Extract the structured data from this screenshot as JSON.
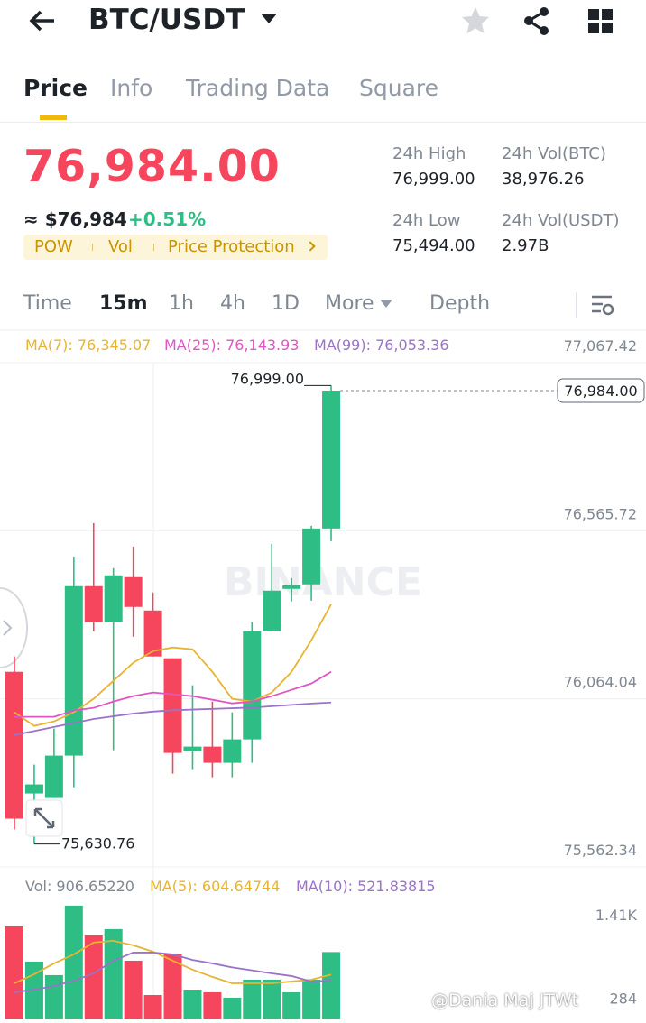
{
  "header": {
    "pair": "BTC/USDT"
  },
  "tabs": [
    "Price",
    "Info",
    "Trading Data",
    "Square"
  ],
  "ticker": {
    "price": "76,984.00",
    "usd": "≈ $76,984",
    "change": "+0.51%",
    "tags": [
      "POW",
      "Vol",
      "Price Protection"
    ]
  },
  "stats": [
    {
      "label": "24h High",
      "value": "76,999.00"
    },
    {
      "label": "24h Vol(BTC)",
      "value": "38,976.26"
    },
    {
      "label": "24h Low",
      "value": "75,494.00"
    },
    {
      "label": "24h Vol(USDT)",
      "value": "2.97B"
    }
  ],
  "intervals": [
    "Time",
    "15m",
    "1h",
    "4h",
    "1D",
    "More",
    "Depth"
  ],
  "watermark": "BINANCE",
  "credit": "@Dania Maj JTWt",
  "chart_data": [
    {
      "type": "candlestick",
      "up_color": "#2ebd85",
      "down_color": "#f6465d",
      "open": [
        76144.7,
        75781.6,
        75768.1,
        75894.6,
        76400.3,
        76292.7,
        76427.2,
        76327.6,
        76185.1,
        75908.0,
        75921.5,
        75873.0,
        75943.0,
        76265.8,
        76392.2,
        76405.7,
        76572.4
      ],
      "high": [
        76190.5,
        75867.7,
        75975.3,
        76489.0,
        76588.6,
        76454.1,
        76518.6,
        76381.4,
        76185.1,
        76104.4,
        76056.0,
        76023.7,
        76292.7,
        76526.7,
        76424.5,
        76580.5,
        76999.0
      ],
      "low": [
        75674.0,
        75630.76,
        75768.1,
        75800.4,
        76265.8,
        75910.7,
        76249.6,
        76190.5,
        75840.8,
        75854.2,
        75830.0,
        75830.0,
        75873.0,
        76265.8,
        76354.5,
        76357.2,
        76534.8
      ],
      "close": [
        75706.3,
        75808.5,
        75894.6,
        76400.3,
        76292.7,
        76432.6,
        76338.4,
        76190.5,
        75902.6,
        75921.5,
        75873.0,
        75943.0,
        76265.8,
        76386.8,
        76403.0,
        76572.4,
        76984.0
      ],
      "series": [
        {
          "name": "MA(7): 76,345.07",
          "color": "#e8b430",
          "values": [
            76023.7,
            75983.3,
            75996.8,
            76023.7,
            76064.0,
            76117.8,
            76171.6,
            76206.6,
            76217.4,
            76212.0,
            76144.7,
            76064.0,
            76056.0,
            76082.9,
            76144.7,
            76238.9,
            76346.5
          ]
        },
        {
          "name": "MA(25): 76,143.93",
          "color": "#e055c6",
          "values": [
            76010.2,
            76010.2,
            76010.2,
            76029.1,
            76037.1,
            76056.0,
            76072.1,
            76082.9,
            76077.5,
            76072.1,
            76061.3,
            76050.6,
            76056.0,
            76072.1,
            76090.9,
            76109.8,
            76144.7
          ]
        },
        {
          "name": "MA(99): 76,053.36",
          "color": "#9b72c9",
          "values": [
            75956,
            75968,
            75980,
            75992,
            76004,
            76012,
            76020,
            76026,
            76030,
            76032,
            76034,
            76036,
            76038,
            76042,
            76046,
            76050,
            76053
          ]
        }
      ],
      "ylim": [
        75562.34,
        77067.42
      ],
      "yticks": [
        {
          "value": 77067.42,
          "label": "77,067.42"
        },
        {
          "value": 76565.72,
          "label": "76,565.72"
        },
        {
          "value": 76064.04,
          "label": "76,064.04"
        },
        {
          "value": 75562.34,
          "label": "75,562.34"
        }
      ],
      "grid": true,
      "annotations": {
        "high": "76,999.00",
        "low": "75,630.76",
        "last": "76,984.00"
      }
    },
    {
      "type": "bar",
      "title": "Vol: 906.65220",
      "values": [
        1252,
        778,
        596,
        1532,
        1131,
        1216,
        790,
        328,
        876,
        401,
        365,
        292,
        535,
        535,
        365,
        535,
        906.6522
      ],
      "series": [
        {
          "name": "MA(5): 604.64744",
          "color": "#e8b430",
          "values": [
            486,
            608,
            754,
            876,
            1034,
            1058,
            997,
            912,
            790,
            669,
            572,
            486,
            486,
            486,
            511,
            535,
            604.6
          ]
        },
        {
          "name": "MA(10): 521.83815",
          "color": "#9b72c9",
          "values": [
            365,
            400,
            450,
            520,
            620,
            790,
            900,
            900,
            876,
            800,
            754,
            700,
            660,
            620,
            584,
            511,
            521.8
          ]
        }
      ],
      "ylim": [
        0,
        1640
      ],
      "yticks": [
        {
          "value": 1410,
          "label": "1.41K"
        },
        284
      ]
    }
  ]
}
